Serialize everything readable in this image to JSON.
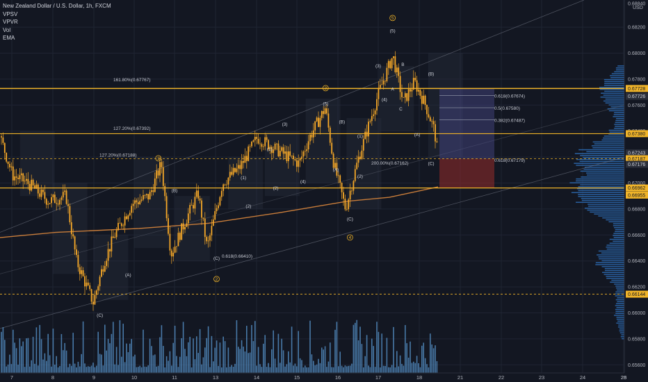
{
  "header": {
    "symbol": "New Zealand Dollar / U.S. Dollar, 1h, FXCM",
    "indicators": [
      "VPSV",
      "VPVR",
      "Vol",
      "EMA"
    ]
  },
  "colors": {
    "background": "#131722",
    "candle": "#f7a928",
    "volume": "#5b9bd5",
    "profile": "#2e6fb8",
    "level_line": "#f0b429",
    "ema": "#c97d3a",
    "channel": "#7a7f8c"
  },
  "chart_data": {
    "type": "candlestick",
    "symbol": "NZDUSD",
    "timeframe": "1h",
    "y_axis": {
      "unit": "USD",
      "range": [
        0.6561,
        0.6884
      ],
      "ticks": [
        0.6884,
        0.682,
        0.68,
        0.678,
        0.676,
        0.674,
        0.672,
        0.67,
        0.668,
        0.666,
        0.664,
        0.662,
        0.66,
        0.658,
        0.656
      ]
    },
    "x_axis": {
      "ticks": [
        "7",
        "8",
        "9",
        "10",
        "11",
        "13",
        "14",
        "15",
        "16",
        "17",
        "18",
        "21",
        "22",
        "23",
        "24",
        "25",
        "28"
      ]
    },
    "price_labels": [
      {
        "value": "0.67728",
        "color": "#f0b429"
      },
      {
        "value": "0.67726",
        "color": "#d1d4dc"
      },
      {
        "value": "0.67380",
        "color": "#f0b429"
      },
      {
        "value": "0.67243",
        "color": "#d1d4dc"
      },
      {
        "value": "04:46",
        "color": "#d1d4dc"
      },
      {
        "value": "0.67187",
        "color": "#f0b429"
      },
      {
        "value": "0.67176",
        "color": "#d1d4dc"
      },
      {
        "value": "0.66962",
        "color": "#f0b429"
      },
      {
        "value": "0.66955",
        "color": "#f0b429"
      },
      {
        "value": "0.66144",
        "color": "#f0b429"
      }
    ],
    "horizontal_levels": [
      0.67728,
      0.6738,
      0.66962,
      0.67187,
      0.66144
    ],
    "fib_labels": [
      {
        "text": "161.80%(0.67767)",
        "price": 0.67767
      },
      {
        "text": "127.20%(0.67392)",
        "price": 0.67392
      },
      {
        "text": "127.20%(0.67188)",
        "price": 0.67188
      },
      {
        "text": "200.00%(0.67162)",
        "price": 0.67162
      },
      {
        "text": "0.618(0.66410)",
        "price": 0.6641
      },
      {
        "text": "0.618(0.67674)",
        "price": 0.67674
      },
      {
        "text": "0.5(0.67580)",
        "price": 0.6758
      },
      {
        "text": "0.382(0.67487)",
        "price": 0.67487
      },
      {
        "text": "0.618(0.67179)",
        "price": 0.67179
      }
    ],
    "wave_labels": [
      {
        "text": "(C)",
        "day": 9.15,
        "price": 0.6597
      },
      {
        "text": "(A)",
        "day": 9.85,
        "price": 0.6628
      },
      {
        "text": "1",
        "day": 10.6,
        "price": 0.6718,
        "circled": true
      },
      {
        "text": "(B)",
        "day": 11.0,
        "price": 0.6693
      },
      {
        "text": "(C)",
        "day": 12.05,
        "price": 0.6641
      },
      {
        "text": "2",
        "day": 12.05,
        "price": 0.6625,
        "circled": true
      },
      {
        "text": "(1)",
        "day": 13.35,
        "price": 0.6703
      },
      {
        "text": "(2)",
        "day": 13.6,
        "price": 0.6681
      },
      {
        "text": "(1)",
        "day": 14.65,
        "price": 0.6725
      },
      {
        "text": "(2)",
        "day": 14.95,
        "price": 0.6695
      },
      {
        "text": "(3)",
        "day": 15.4,
        "price": 0.6744
      },
      {
        "text": "(4)",
        "day": 16.15,
        "price": 0.67
      },
      {
        "text": "3",
        "day": 16.7,
        "price": 0.6772,
        "circled": true
      },
      {
        "text": "(5)",
        "day": 16.7,
        "price": 0.676
      },
      {
        "text": "(B)",
        "day": 17.1,
        "price": 0.6746
      },
      {
        "text": "(A)",
        "day": 16.95,
        "price": 0.6709
      },
      {
        "text": "(1)",
        "day": 17.55,
        "price": 0.6735
      },
      {
        "text": "(2)",
        "day": 17.55,
        "price": 0.6704
      },
      {
        "text": "(C)",
        "day": 17.3,
        "price": 0.6671
      },
      {
        "text": "4",
        "day": 17.3,
        "price": 0.6657,
        "circled": true
      },
      {
        "text": "(3)",
        "day": 18.0,
        "price": 0.6789
      },
      {
        "text": "(4)",
        "day": 18.15,
        "price": 0.6763
      },
      {
        "text": "5",
        "day": 18.35,
        "price": 0.6826,
        "circled": true
      },
      {
        "text": "(5)",
        "day": 18.35,
        "price": 0.6816
      },
      {
        "text": "A",
        "day": 18.35,
        "price": 0.6771
      },
      {
        "text": "B",
        "day": 18.6,
        "price": 0.679
      },
      {
        "text": "C",
        "day": 18.55,
        "price": 0.6756
      },
      {
        "text": "(B)",
        "day": 19.25,
        "price": 0.6783
      },
      {
        "text": "(A)",
        "day": 18.95,
        "price": 0.6736
      },
      {
        "text": "(C)",
        "day": 19.4,
        "price": 0.6714
      }
    ]
  }
}
